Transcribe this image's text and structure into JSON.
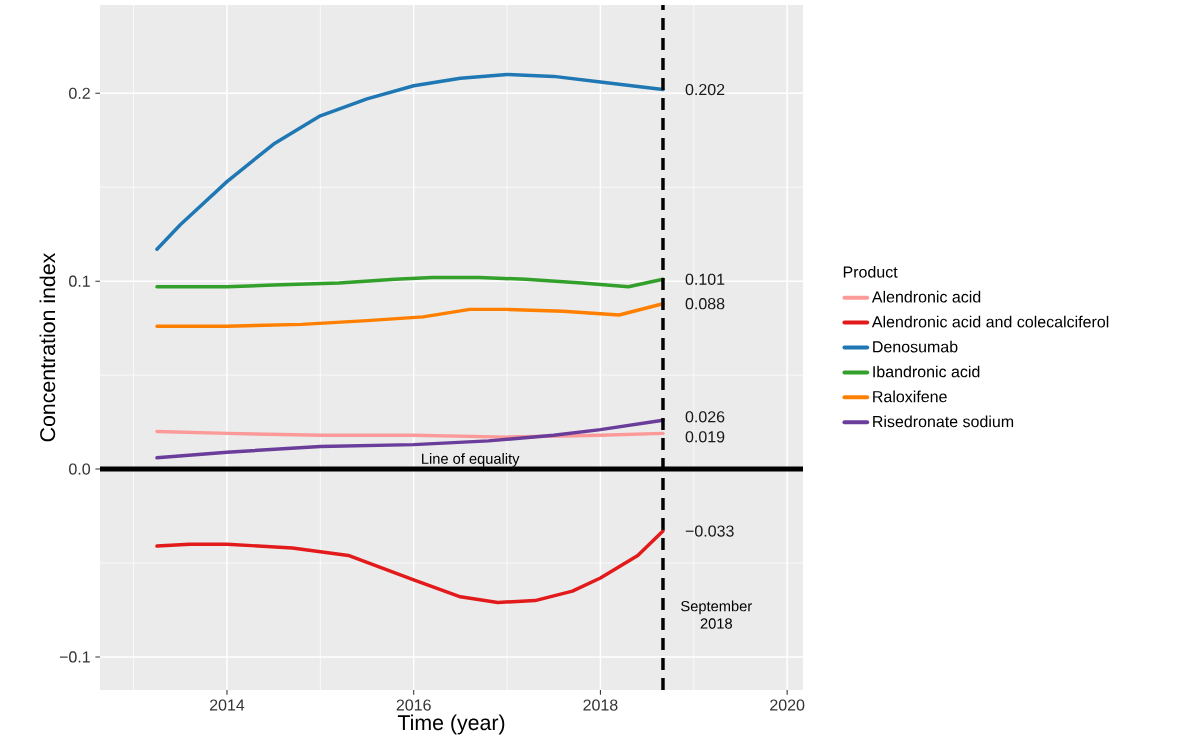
{
  "chart_data": {
    "type": "line",
    "xlabel": "Time (year)",
    "ylabel": "Concentration index",
    "legend_title": "Product",
    "xlim": [
      2012.64,
      2020.17
    ],
    "ylim": [
      -0.1176,
      0.247
    ],
    "xticks": [
      2014,
      2016,
      2018,
      2020
    ],
    "yticks": [
      {
        "value": -0.1,
        "label": "−0.1"
      },
      {
        "value": 0,
        "label": "0.0"
      },
      {
        "value": 0.1,
        "label": "0.1"
      },
      {
        "value": 0.2,
        "label": "0.2"
      }
    ],
    "grid": true,
    "legend": "right",
    "line_style": "solid",
    "series": [
      {
        "name": "Alendronic acid",
        "color": "#fb9a99",
        "x": [
          2013.25,
          2014,
          2015,
          2016,
          2017,
          2018,
          2018.67
        ],
        "values": [
          0.02,
          0.019,
          0.018,
          0.018,
          0.017,
          0.018,
          0.019
        ],
        "value_labels": [
          null,
          null,
          null,
          null,
          null,
          null,
          "0.019"
        ]
      },
      {
        "name": "Alendronic acid and colecalciferol",
        "color": "#e31a1c",
        "x": [
          2013.25,
          2013.6,
          2014,
          2014.7,
          2015.3,
          2016,
          2016.5,
          2016.9,
          2017.3,
          2017.7,
          2018,
          2018.4,
          2018.67
        ],
        "values": [
          -0.041,
          -0.04,
          -0.04,
          -0.042,
          -0.046,
          -0.059,
          -0.068,
          -0.071,
          -0.07,
          -0.065,
          -0.058,
          -0.046,
          -0.033
        ],
        "value_labels": [
          null,
          null,
          null,
          null,
          null,
          null,
          null,
          null,
          null,
          null,
          null,
          null,
          "−0.033"
        ]
      },
      {
        "name": "Denosumab",
        "color": "#1f78b4",
        "x": [
          2013.25,
          2013.5,
          2014,
          2014.5,
          2015,
          2015.5,
          2016,
          2016.5,
          2017,
          2017.5,
          2018,
          2018.67
        ],
        "values": [
          0.117,
          0.13,
          0.153,
          0.173,
          0.188,
          0.197,
          0.204,
          0.208,
          0.21,
          0.209,
          0.206,
          0.202
        ],
        "value_labels": [
          null,
          null,
          null,
          null,
          null,
          null,
          null,
          null,
          null,
          null,
          null,
          "0.202"
        ]
      },
      {
        "name": "Ibandronic acid",
        "color": "#33a02c",
        "x": [
          2013.25,
          2014,
          2014.5,
          2015.2,
          2015.8,
          2016.2,
          2016.7,
          2017.2,
          2017.8,
          2018.3,
          2018.67
        ],
        "values": [
          0.097,
          0.097,
          0.098,
          0.099,
          0.101,
          0.102,
          0.102,
          0.101,
          0.099,
          0.097,
          0.101
        ],
        "value_labels": [
          null,
          null,
          null,
          null,
          null,
          null,
          null,
          null,
          null,
          null,
          "0.101"
        ]
      },
      {
        "name": "Raloxifene",
        "color": "#ff7f00",
        "x": [
          2013.25,
          2014,
          2014.8,
          2015.5,
          2016.1,
          2016.6,
          2017,
          2017.6,
          2018.2,
          2018.67
        ],
        "values": [
          0.076,
          0.076,
          0.077,
          0.079,
          0.081,
          0.085,
          0.085,
          0.084,
          0.082,
          0.088
        ],
        "value_labels": [
          null,
          null,
          null,
          null,
          null,
          null,
          null,
          null,
          null,
          "0.088"
        ]
      },
      {
        "name": "Risedronate sodium",
        "color": "#6a3d9a",
        "x": [
          2013.25,
          2014,
          2015,
          2016,
          2016.8,
          2017.5,
          2018,
          2018.67
        ],
        "values": [
          0.006,
          0.009,
          0.012,
          0.013,
          0.015,
          0.018,
          0.021,
          0.026
        ],
        "value_labels": [
          null,
          null,
          null,
          null,
          null,
          null,
          null,
          "0.026"
        ]
      }
    ],
    "ref_lines": [
      {
        "axis": "y",
        "value": 0,
        "label": "Line of equality",
        "color": "#000000",
        "line_style": "solid"
      },
      {
        "axis": "x",
        "value": 2018.67,
        "label": "September 2018",
        "color": "#000000",
        "line_style": "dashed"
      }
    ]
  }
}
